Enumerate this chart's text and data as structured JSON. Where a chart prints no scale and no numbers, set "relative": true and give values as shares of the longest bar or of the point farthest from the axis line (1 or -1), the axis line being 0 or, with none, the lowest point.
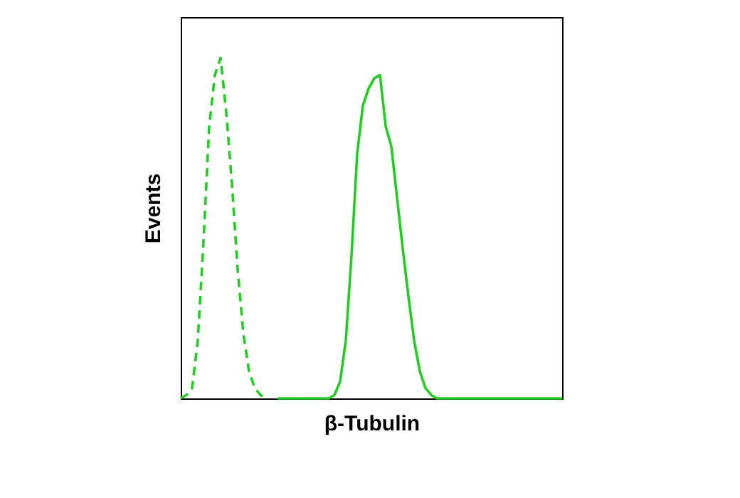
{
  "chart_data": {
    "type": "line",
    "xlabel": "β-Tubulin",
    "ylabel": "Events",
    "relative": true,
    "marker": "none",
    "categories": [
      null,
      null,
      null,
      null,
      null,
      null,
      null,
      null,
      null,
      null,
      null,
      null,
      null,
      null,
      null,
      null,
      null,
      null,
      null,
      null,
      null,
      null,
      null,
      null,
      null,
      null,
      null,
      null,
      null,
      null,
      null,
      null,
      null,
      null,
      null,
      null,
      null,
      null,
      null,
      null,
      null,
      null,
      null,
      null,
      null,
      null,
      null,
      null,
      null,
      null,
      null,
      null,
      null,
      null,
      null,
      null,
      null,
      null,
      null,
      null,
      null,
      null,
      null,
      null,
      null,
      null,
      null,
      null
    ],
    "series": [
      {
        "color": "#22cc22",
        "line_style": "dashed",
        "values": [
          0,
          0.01,
          0.03,
          0.17,
          0.46,
          0.8,
          0.95,
          1,
          0.84,
          0.63,
          0.38,
          0.19,
          0.08,
          0.03,
          0.01,
          0,
          null,
          null,
          null,
          null,
          null,
          null,
          null,
          null,
          null,
          null,
          null,
          null,
          null,
          null,
          null,
          null,
          null,
          null,
          null,
          null,
          null,
          null,
          null,
          null,
          null,
          null,
          null,
          null,
          null,
          null,
          null,
          null,
          null,
          null,
          null,
          null,
          null,
          null,
          null,
          null,
          null,
          null,
          null,
          null,
          null,
          null,
          null,
          null,
          null,
          null,
          null,
          null
        ]
      },
      {
        "color": "#22cc22",
        "line_style": "solid",
        "values": [
          null,
          null,
          null,
          null,
          null,
          null,
          null,
          null,
          null,
          null,
          null,
          null,
          null,
          null,
          null,
          null,
          null,
          0,
          0,
          0,
          0,
          0,
          0,
          0,
          0,
          0,
          0,
          0.01,
          0.05,
          0.17,
          0.42,
          0.72,
          0.86,
          0.91,
          0.94,
          0.95,
          0.8,
          0.74,
          0.59,
          0.44,
          0.3,
          0.17,
          0.08,
          0.03,
          0.01,
          0,
          0,
          0,
          0,
          0,
          0,
          0,
          0,
          0,
          0,
          0,
          0,
          0,
          0,
          0,
          0,
          0,
          0,
          0,
          0,
          0,
          0,
          0
        ]
      }
    ]
  }
}
